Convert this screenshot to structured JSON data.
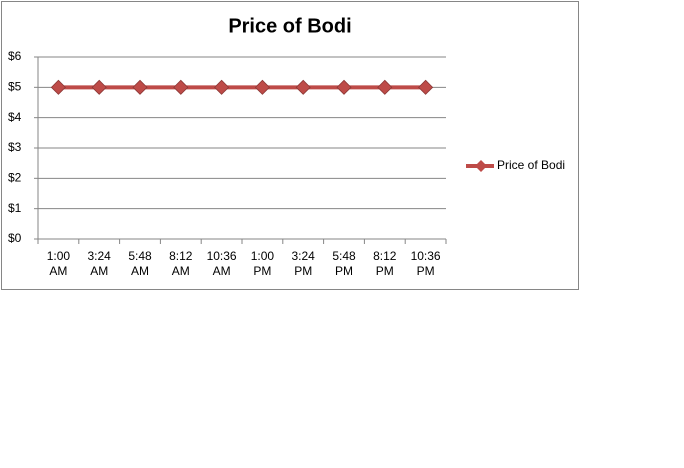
{
  "chart_data": {
    "type": "line",
    "title": "Price of Bodi",
    "categories": [
      "1:00 AM",
      "3:24 AM",
      "5:48 AM",
      "8:12 AM",
      "10:36 AM",
      "1:00 PM",
      "3:24 PM",
      "5:48 PM",
      "8:12 PM",
      "10:36 PM"
    ],
    "series": [
      {
        "name": "Price of Bodi",
        "color": "#be4b48",
        "values": [
          5,
          5,
          5,
          5,
          5,
          5,
          5,
          5,
          5,
          5
        ]
      }
    ],
    "ylim": [
      0,
      6
    ],
    "yticks": [
      {
        "value": 0,
        "label": "$0"
      },
      {
        "value": 1,
        "label": "$1"
      },
      {
        "value": 2,
        "label": "$2"
      },
      {
        "value": 3,
        "label": "$3"
      },
      {
        "value": 4,
        "label": "$4"
      },
      {
        "value": 5,
        "label": "$5"
      },
      {
        "value": 6,
        "label": "$6"
      }
    ],
    "grid": true,
    "legend": "right"
  }
}
